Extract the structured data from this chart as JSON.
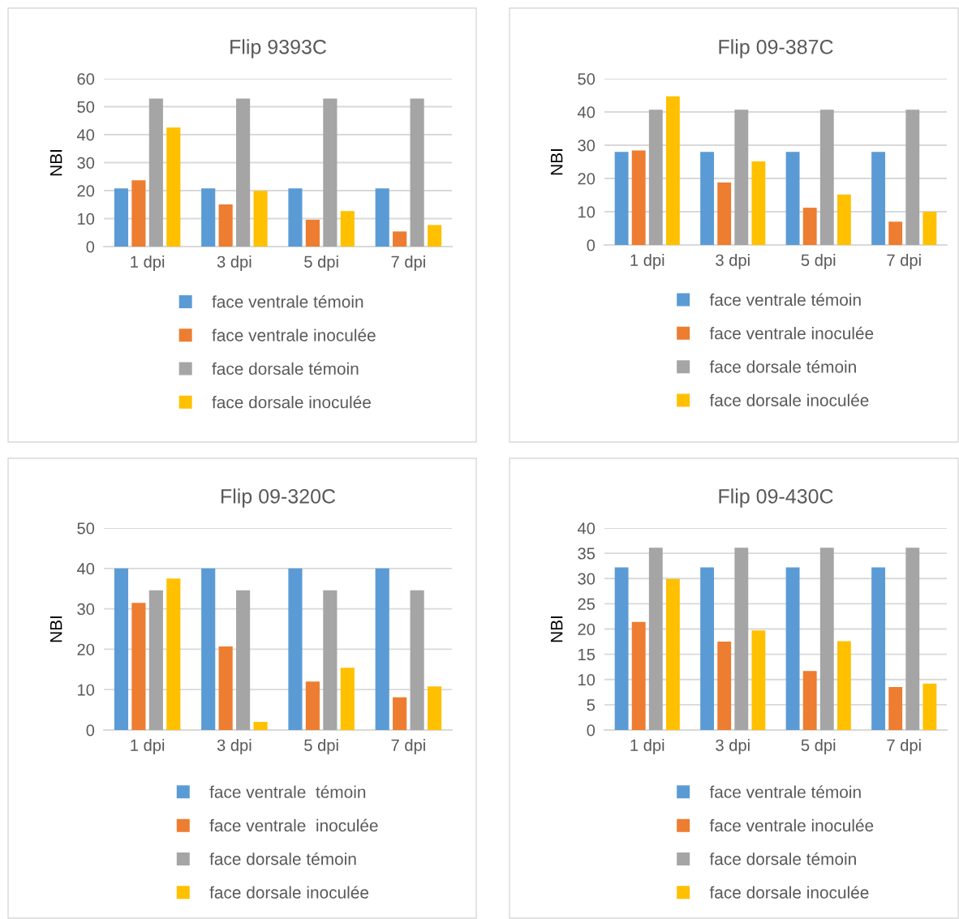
{
  "chart_data": [
    {
      "type": "bar",
      "title": "Flip 9393C",
      "ylabel": "NBI",
      "categories": [
        "1 dpi",
        "3 dpi",
        "5 dpi",
        "7 dpi"
      ],
      "ylim": [
        0,
        60
      ],
      "yticks": [
        0,
        10,
        20,
        30,
        40,
        50,
        60
      ],
      "grid": "y",
      "legend": "bottom",
      "series": [
        {
          "name": "face ventrale témoin",
          "color": "#5b9bd5",
          "values": [
            20.8,
            20.8,
            20.8,
            20.8
          ]
        },
        {
          "name": "face ventrale inoculée",
          "color": "#ed7d31",
          "values": [
            23.7,
            15.1,
            9.6,
            5.4
          ]
        },
        {
          "name": "face dorsale témoin",
          "color": "#a5a5a5",
          "values": [
            52.9,
            52.9,
            52.9,
            52.9
          ]
        },
        {
          "name": "face dorsale inoculée",
          "color": "#ffc000",
          "values": [
            42.5,
            19.9,
            12.7,
            7.7
          ]
        }
      ]
    },
    {
      "type": "bar",
      "title": "Flip 09-387C",
      "ylabel": "NBI",
      "categories": [
        "1 dpi",
        "3 dpi",
        "5 dpi",
        "7 dpi"
      ],
      "ylim": [
        0,
        50
      ],
      "yticks": [
        0,
        10,
        20,
        30,
        40,
        50
      ],
      "grid": "y",
      "legend": "bottom",
      "series": [
        {
          "name": "face ventrale témoin",
          "color": "#5b9bd5",
          "values": [
            28.0,
            28.0,
            28.0,
            28.0
          ]
        },
        {
          "name": "face ventrale inoculée",
          "color": "#ed7d31",
          "values": [
            28.4,
            18.8,
            11.2,
            7.0
          ]
        },
        {
          "name": "face dorsale témoin",
          "color": "#a5a5a5",
          "values": [
            40.7,
            40.7,
            40.7,
            40.7
          ]
        },
        {
          "name": "face dorsale inoculée",
          "color": "#ffc000",
          "values": [
            44.7,
            25.1,
            15.2,
            10.0
          ]
        }
      ]
    },
    {
      "type": "bar",
      "title": "Flip 09-320C",
      "ylabel": "NBI",
      "categories": [
        "1 dpi",
        "3 dpi",
        "5 dpi",
        "7 dpi"
      ],
      "ylim": [
        0,
        50
      ],
      "yticks": [
        0,
        10,
        20,
        30,
        40,
        50
      ],
      "grid": "y",
      "legend": "bottom",
      "series": [
        {
          "name": "face ventrale  témoin",
          "color": "#5b9bd5",
          "values": [
            40.0,
            40.0,
            40.0,
            40.0
          ]
        },
        {
          "name": "face ventrale  inoculée",
          "color": "#ed7d31",
          "values": [
            31.5,
            20.7,
            12.0,
            8.1
          ]
        },
        {
          "name": "face dorsale témoin",
          "color": "#a5a5a5",
          "values": [
            34.6,
            34.6,
            34.6,
            34.6
          ]
        },
        {
          "name": "face dorsale inoculée",
          "color": "#ffc000",
          "values": [
            37.5,
            2.0,
            15.4,
            10.8
          ]
        }
      ]
    },
    {
      "type": "bar",
      "title": "Flip 09-430C",
      "ylabel": "NBI",
      "categories": [
        "1 dpi",
        "3 dpi",
        "5 dpi",
        "7 dpi"
      ],
      "ylim": [
        0,
        40
      ],
      "yticks": [
        0,
        5,
        10,
        15,
        20,
        25,
        30,
        35,
        40
      ],
      "grid": "y",
      "legend": "bottom",
      "series": [
        {
          "name": "face ventrale témoin",
          "color": "#5b9bd5",
          "values": [
            32.2,
            32.2,
            32.2,
            32.2
          ]
        },
        {
          "name": "face ventrale inoculée",
          "color": "#ed7d31",
          "values": [
            21.4,
            17.5,
            11.7,
            8.5
          ]
        },
        {
          "name": "face dorsale témoin",
          "color": "#a5a5a5",
          "values": [
            36.1,
            36.1,
            36.1,
            36.1
          ]
        },
        {
          "name": "face dorsale inoculée",
          "color": "#ffc000",
          "values": [
            29.9,
            19.7,
            17.6,
            9.2
          ]
        }
      ]
    }
  ]
}
